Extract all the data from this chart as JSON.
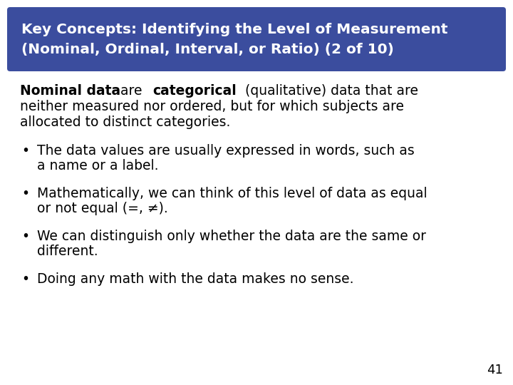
{
  "title_line1": "Key Concepts: Identifying the Level of Measurement",
  "title_line2": "(Nominal, Ordinal, Interval, or Ratio) (2 of 10)",
  "title_bg_color": "#3B4D9E",
  "title_text_color": "#FFFFFF",
  "bg_color": "#FFFFFF",
  "page_number": "41",
  "font_size_title": 14.5,
  "font_size_body": 13.5,
  "font_size_page": 13
}
